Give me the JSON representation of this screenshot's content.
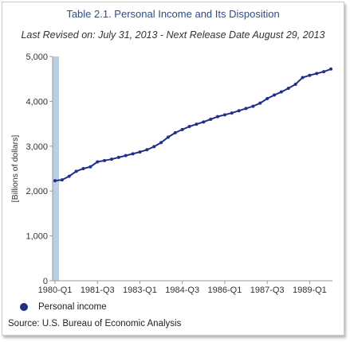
{
  "chart_data": {
    "type": "line",
    "title": "Table 2.1. Personal Income and Its Disposition",
    "subtitle": "Last Revised on: July 31, 2013 - Next Release Date August 29, 2013",
    "ylabel": "[Billions of dollars]",
    "xlabel": "",
    "ylim": [
      0,
      5000
    ],
    "yticks": [
      "0",
      "1,000",
      "2,000",
      "3,000",
      "4,000",
      "5,000"
    ],
    "xtick_labels": [
      "1980-Q1",
      "1981-Q3",
      "1983-Q1",
      "1984-Q3",
      "1986-Q1",
      "1987-Q3",
      "1989-Q1"
    ],
    "grid": false,
    "legend_position": "bottom-left",
    "colors": {
      "series": "#1f2f8a",
      "selection_band": "#b8cfe4"
    },
    "series": [
      {
        "name": "Personal income",
        "x": [
          "1980-Q1",
          "1980-Q2",
          "1980-Q3",
          "1980-Q4",
          "1981-Q1",
          "1981-Q2",
          "1981-Q3",
          "1981-Q4",
          "1982-Q1",
          "1982-Q2",
          "1982-Q3",
          "1982-Q4",
          "1983-Q1",
          "1983-Q2",
          "1983-Q3",
          "1983-Q4",
          "1984-Q1",
          "1984-Q2",
          "1984-Q3",
          "1984-Q4",
          "1985-Q1",
          "1985-Q2",
          "1985-Q3",
          "1985-Q4",
          "1986-Q1",
          "1986-Q2",
          "1986-Q3",
          "1986-Q4",
          "1987-Q1",
          "1987-Q2",
          "1987-Q3",
          "1987-Q4",
          "1988-Q1",
          "1988-Q2",
          "1988-Q3",
          "1988-Q4",
          "1989-Q1",
          "1989-Q2",
          "1989-Q3",
          "1989-Q4"
        ],
        "values": [
          2230,
          2250,
          2330,
          2440,
          2500,
          2540,
          2650,
          2680,
          2710,
          2750,
          2790,
          2830,
          2870,
          2920,
          2990,
          3080,
          3200,
          3300,
          3370,
          3440,
          3490,
          3540,
          3600,
          3660,
          3700,
          3740,
          3790,
          3840,
          3890,
          3960,
          4060,
          4140,
          4210,
          4290,
          4380,
          4530,
          4580,
          4620,
          4660,
          4720
        ]
      }
    ]
  },
  "legend": {
    "label": "Personal income"
  },
  "source": "Source: U.S. Bureau of Economic Analysis"
}
